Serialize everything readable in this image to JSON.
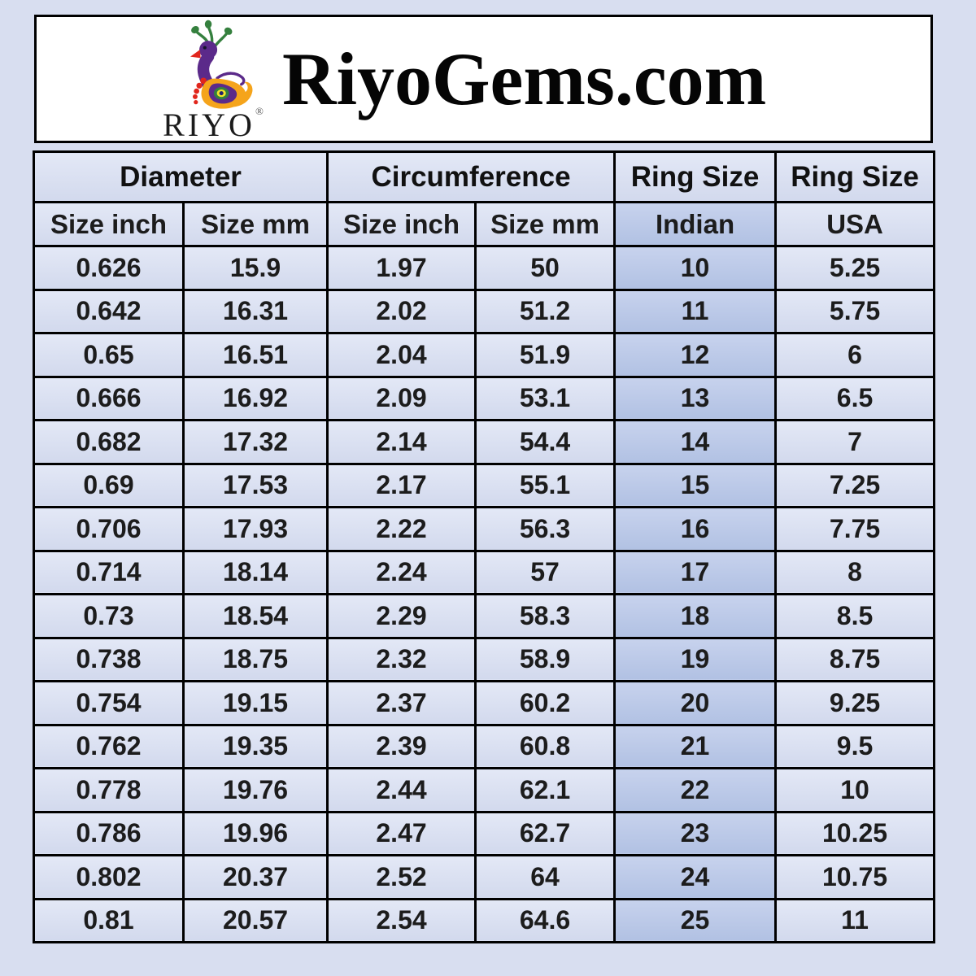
{
  "header": {
    "site_title": "RiyoGems.com",
    "logo_brand": "RIYO",
    "logo_registered": "®",
    "logo_icon": "peacock-icon"
  },
  "colors": {
    "page_background": "#d8def0",
    "header_box_background": "#ffffff",
    "table_border": "#000000",
    "cell_background": "#dbe1f1",
    "indian_column_background": "#bac7e6",
    "text": "#1c1c1c",
    "logo_purple": "#5b2a8a",
    "logo_green": "#35803e",
    "logo_orange": "#f5a41b",
    "logo_red": "#e1261c",
    "logo_yellow": "#f2e32b"
  },
  "table": {
    "groups": [
      "Diameter",
      "Circumference",
      "Ring Size",
      "Ring Size"
    ],
    "sub_headers": [
      "Size inch",
      "Size mm",
      "Size inch",
      "Size mm",
      "Indian",
      "USA"
    ],
    "rows": [
      [
        "0.626",
        "15.9",
        "1.97",
        "50",
        "10",
        "5.25"
      ],
      [
        "0.642",
        "16.31",
        "2.02",
        "51.2",
        "11",
        "5.75"
      ],
      [
        "0.65",
        "16.51",
        "2.04",
        "51.9",
        "12",
        "6"
      ],
      [
        "0.666",
        "16.92",
        "2.09",
        "53.1",
        "13",
        "6.5"
      ],
      [
        "0.682",
        "17.32",
        "2.14",
        "54.4",
        "14",
        "7"
      ],
      [
        "0.69",
        "17.53",
        "2.17",
        "55.1",
        "15",
        "7.25"
      ],
      [
        "0.706",
        "17.93",
        "2.22",
        "56.3",
        "16",
        "7.75"
      ],
      [
        "0.714",
        "18.14",
        "2.24",
        "57",
        "17",
        "8"
      ],
      [
        "0.73",
        "18.54",
        "2.29",
        "58.3",
        "18",
        "8.5"
      ],
      [
        "0.738",
        "18.75",
        "2.32",
        "58.9",
        "19",
        "8.75"
      ],
      [
        "0.754",
        "19.15",
        "2.37",
        "60.2",
        "20",
        "9.25"
      ],
      [
        "0.762",
        "19.35",
        "2.39",
        "60.8",
        "21",
        "9.5"
      ],
      [
        "0.778",
        "19.76",
        "2.44",
        "62.1",
        "22",
        "10"
      ],
      [
        "0.786",
        "19.96",
        "2.47",
        "62.7",
        "23",
        "10.25"
      ],
      [
        "0.802",
        "20.37",
        "2.52",
        "64",
        "24",
        "10.75"
      ],
      [
        "0.81",
        "20.57",
        "2.54",
        "64.6",
        "25",
        "11"
      ]
    ]
  },
  "chart_data": {
    "type": "table",
    "title": "RiyoGems.com ring size conversion chart",
    "column_groups": [
      {
        "label": "Diameter",
        "span": 2
      },
      {
        "label": "Circumference",
        "span": 2
      },
      {
        "label": "Ring Size",
        "span": 1
      },
      {
        "label": "Ring Size",
        "span": 1
      }
    ],
    "columns": [
      "Diameter Size inch",
      "Diameter Size mm",
      "Circumference Size inch",
      "Circumference Size mm",
      "Ring Size Indian",
      "Ring Size USA"
    ],
    "rows": [
      [
        0.626,
        15.9,
        1.97,
        50,
        10,
        5.25
      ],
      [
        0.642,
        16.31,
        2.02,
        51.2,
        11,
        5.75
      ],
      [
        0.65,
        16.51,
        2.04,
        51.9,
        12,
        6
      ],
      [
        0.666,
        16.92,
        2.09,
        53.1,
        13,
        6.5
      ],
      [
        0.682,
        17.32,
        2.14,
        54.4,
        14,
        7
      ],
      [
        0.69,
        17.53,
        2.17,
        55.1,
        15,
        7.25
      ],
      [
        0.706,
        17.93,
        2.22,
        56.3,
        16,
        7.75
      ],
      [
        0.714,
        18.14,
        2.24,
        57,
        17,
        8
      ],
      [
        0.73,
        18.54,
        2.29,
        58.3,
        18,
        8.5
      ],
      [
        0.738,
        18.75,
        2.32,
        58.9,
        19,
        8.75
      ],
      [
        0.754,
        19.15,
        2.37,
        60.2,
        20,
        9.25
      ],
      [
        0.762,
        19.35,
        2.39,
        60.8,
        21,
        9.5
      ],
      [
        0.778,
        19.76,
        2.44,
        62.1,
        22,
        10
      ],
      [
        0.786,
        19.96,
        2.47,
        62.7,
        23,
        10.25
      ],
      [
        0.802,
        20.37,
        2.52,
        64,
        24,
        10.75
      ],
      [
        0.81,
        20.57,
        2.54,
        64.6,
        25,
        11
      ]
    ],
    "highlighted_column": "Ring Size Indian"
  }
}
